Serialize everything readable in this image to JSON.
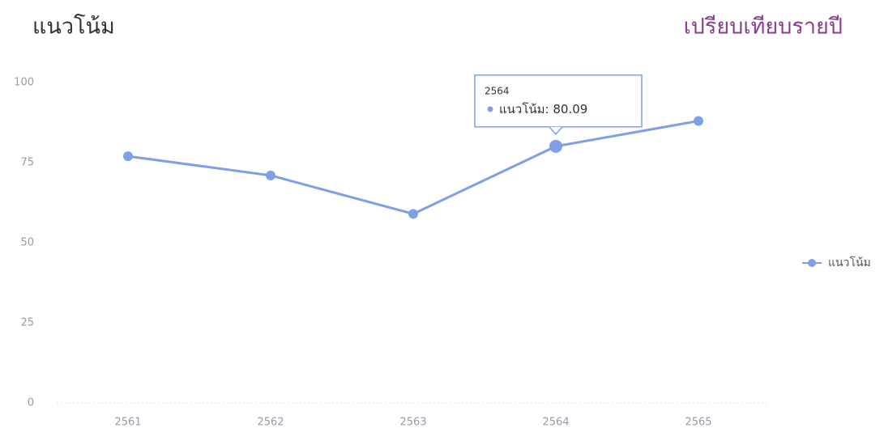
{
  "chart_data": {
    "type": "line",
    "title": "แนวโน้ม",
    "subtitle": "เปรียบเทียบรายปี",
    "categories": [
      "2561",
      "2562",
      "2563",
      "2564",
      "2565"
    ],
    "series": [
      {
        "name": "แนวโน้ม",
        "color": "#7fa0e6",
        "values": [
          77,
          71,
          59,
          80.09,
          88
        ]
      }
    ],
    "ylim": [
      0,
      100
    ],
    "yticks": [
      0,
      25,
      50,
      75,
      100
    ],
    "grid": false,
    "legend": "right",
    "tooltip_index": 3
  }
}
